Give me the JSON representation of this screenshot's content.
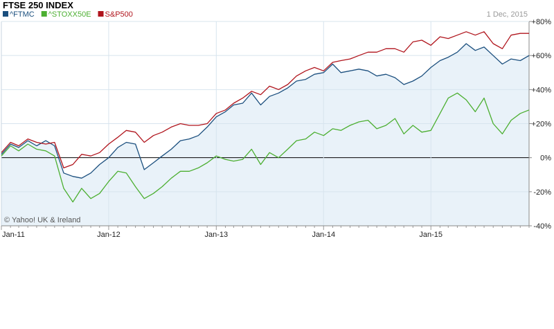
{
  "chart_data": {
    "type": "line",
    "title": "FTSE 250 INDEX",
    "date_label": "1 Dec, 2015",
    "credit": "© Yahoo! UK & Ireland",
    "x_range": [
      "2011-01-01",
      "2015-12-01"
    ],
    "ylim": [
      -40,
      80
    ],
    "y_ticks": [
      {
        "value": 80,
        "label": "+80%"
      },
      {
        "value": 60,
        "label": "+60%"
      },
      {
        "value": 40,
        "label": "+40%"
      },
      {
        "value": 20,
        "label": "+20%"
      },
      {
        "value": 0,
        "label": "0%"
      },
      {
        "value": -20,
        "label": "-20%"
      },
      {
        "value": -40,
        "label": "-40%"
      }
    ],
    "x_ticks": [
      {
        "date": "2011-01-01",
        "label": "Jan-11"
      },
      {
        "date": "2012-01-01",
        "label": "Jan-12"
      },
      {
        "date": "2013-01-01",
        "label": "Jan-13"
      },
      {
        "date": "2014-01-01",
        "label": "Jan-14"
      },
      {
        "date": "2015-01-01",
        "label": "Jan-15"
      }
    ],
    "grid": true,
    "legend_position": "top-left",
    "series": [
      {
        "name": "^FTMC",
        "color": "#1b4f7e",
        "fill": "#e9f2f9",
        "points": [
          [
            "2011-01-01",
            2
          ],
          [
            "2011-02-01",
            8
          ],
          [
            "2011-03-01",
            6
          ],
          [
            "2011-04-01",
            10
          ],
          [
            "2011-05-01",
            7
          ],
          [
            "2011-06-01",
            10
          ],
          [
            "2011-07-01",
            7
          ],
          [
            "2011-08-01",
            -9
          ],
          [
            "2011-09-01",
            -11
          ],
          [
            "2011-10-01",
            -12
          ],
          [
            "2011-11-01",
            -9
          ],
          [
            "2011-12-01",
            -4
          ],
          [
            "2012-01-01",
            0
          ],
          [
            "2012-02-01",
            6
          ],
          [
            "2012-03-01",
            9
          ],
          [
            "2012-04-01",
            8
          ],
          [
            "2012-05-01",
            -7
          ],
          [
            "2012-06-01",
            -3
          ],
          [
            "2012-07-01",
            1
          ],
          [
            "2012-08-01",
            5
          ],
          [
            "2012-09-01",
            10
          ],
          [
            "2012-10-01",
            11
          ],
          [
            "2012-11-01",
            13
          ],
          [
            "2012-12-01",
            18
          ],
          [
            "2013-01-01",
            24
          ],
          [
            "2013-02-01",
            27
          ],
          [
            "2013-03-01",
            31
          ],
          [
            "2013-04-01",
            32
          ],
          [
            "2013-05-01",
            38
          ],
          [
            "2013-06-01",
            31
          ],
          [
            "2013-07-01",
            36
          ],
          [
            "2013-08-01",
            38
          ],
          [
            "2013-09-01",
            41
          ],
          [
            "2013-10-01",
            45
          ],
          [
            "2013-11-01",
            46
          ],
          [
            "2013-12-01",
            49
          ],
          [
            "2014-01-01",
            50
          ],
          [
            "2014-02-01",
            55
          ],
          [
            "2014-03-01",
            50
          ],
          [
            "2014-04-01",
            51
          ],
          [
            "2014-05-01",
            52
          ],
          [
            "2014-06-01",
            51
          ],
          [
            "2014-07-01",
            48
          ],
          [
            "2014-08-01",
            49
          ],
          [
            "2014-09-01",
            47
          ],
          [
            "2014-10-01",
            43
          ],
          [
            "2014-11-01",
            45
          ],
          [
            "2014-12-01",
            48
          ],
          [
            "2015-01-01",
            53
          ],
          [
            "2015-02-01",
            57
          ],
          [
            "2015-03-01",
            59
          ],
          [
            "2015-04-01",
            62
          ],
          [
            "2015-05-01",
            67
          ],
          [
            "2015-06-01",
            63
          ],
          [
            "2015-07-01",
            65
          ],
          [
            "2015-08-01",
            60
          ],
          [
            "2015-09-01",
            55
          ],
          [
            "2015-10-01",
            58
          ],
          [
            "2015-11-01",
            57
          ],
          [
            "2015-12-01",
            60
          ]
        ]
      },
      {
        "name": "^STOXX50E",
        "color": "#4caf31",
        "fill": "",
        "points": [
          [
            "2011-01-01",
            1
          ],
          [
            "2011-02-01",
            7
          ],
          [
            "2011-03-01",
            4
          ],
          [
            "2011-04-01",
            8
          ],
          [
            "2011-05-01",
            5
          ],
          [
            "2011-06-01",
            4
          ],
          [
            "2011-07-01",
            1
          ],
          [
            "2011-08-01",
            -18
          ],
          [
            "2011-09-01",
            -26
          ],
          [
            "2011-10-01",
            -18
          ],
          [
            "2011-11-01",
            -24
          ],
          [
            "2011-12-01",
            -21
          ],
          [
            "2012-01-01",
            -14
          ],
          [
            "2012-02-01",
            -8
          ],
          [
            "2012-03-01",
            -9
          ],
          [
            "2012-04-01",
            -17
          ],
          [
            "2012-05-01",
            -24
          ],
          [
            "2012-06-01",
            -21
          ],
          [
            "2012-07-01",
            -17
          ],
          [
            "2012-08-01",
            -12
          ],
          [
            "2012-09-01",
            -8
          ],
          [
            "2012-10-01",
            -8
          ],
          [
            "2012-11-01",
            -6
          ],
          [
            "2012-12-01",
            -3
          ],
          [
            "2013-01-01",
            1
          ],
          [
            "2013-02-01",
            -1
          ],
          [
            "2013-03-01",
            -2
          ],
          [
            "2013-04-01",
            -1
          ],
          [
            "2013-05-01",
            5
          ],
          [
            "2013-06-01",
            -4
          ],
          [
            "2013-07-01",
            3
          ],
          [
            "2013-08-01",
            0
          ],
          [
            "2013-09-01",
            5
          ],
          [
            "2013-10-01",
            10
          ],
          [
            "2013-11-01",
            11
          ],
          [
            "2013-12-01",
            15
          ],
          [
            "2014-01-01",
            13
          ],
          [
            "2014-02-01",
            17
          ],
          [
            "2014-03-01",
            16
          ],
          [
            "2014-04-01",
            19
          ],
          [
            "2014-05-01",
            21
          ],
          [
            "2014-06-01",
            22
          ],
          [
            "2014-07-01",
            17
          ],
          [
            "2014-08-01",
            19
          ],
          [
            "2014-09-01",
            23
          ],
          [
            "2014-10-01",
            14
          ],
          [
            "2014-11-01",
            19
          ],
          [
            "2014-12-01",
            15
          ],
          [
            "2015-01-01",
            16
          ],
          [
            "2015-02-01",
            26
          ],
          [
            "2015-03-01",
            35
          ],
          [
            "2015-04-01",
            38
          ],
          [
            "2015-05-01",
            34
          ],
          [
            "2015-06-01",
            27
          ],
          [
            "2015-07-01",
            35
          ],
          [
            "2015-08-01",
            20
          ],
          [
            "2015-09-01",
            14
          ],
          [
            "2015-10-01",
            22
          ],
          [
            "2015-11-01",
            26
          ],
          [
            "2015-12-01",
            28
          ]
        ]
      },
      {
        "name": "S&P500",
        "color": "#b0141c",
        "fill": "",
        "points": [
          [
            "2011-01-01",
            3
          ],
          [
            "2011-02-01",
            9
          ],
          [
            "2011-03-01",
            7
          ],
          [
            "2011-04-01",
            11
          ],
          [
            "2011-05-01",
            9
          ],
          [
            "2011-06-01",
            8
          ],
          [
            "2011-07-01",
            9
          ],
          [
            "2011-08-01",
            -6
          ],
          [
            "2011-09-01",
            -4
          ],
          [
            "2011-10-01",
            2
          ],
          [
            "2011-11-01",
            1
          ],
          [
            "2011-12-01",
            3
          ],
          [
            "2012-01-01",
            8
          ],
          [
            "2012-02-01",
            12
          ],
          [
            "2012-03-01",
            16
          ],
          [
            "2012-04-01",
            15
          ],
          [
            "2012-05-01",
            9
          ],
          [
            "2012-06-01",
            13
          ],
          [
            "2012-07-01",
            15
          ],
          [
            "2012-08-01",
            18
          ],
          [
            "2012-09-01",
            20
          ],
          [
            "2012-10-01",
            19
          ],
          [
            "2012-11-01",
            19
          ],
          [
            "2012-12-01",
            20
          ],
          [
            "2013-01-01",
            26
          ],
          [
            "2013-02-01",
            28
          ],
          [
            "2013-03-01",
            32
          ],
          [
            "2013-04-01",
            35
          ],
          [
            "2013-05-01",
            39
          ],
          [
            "2013-06-01",
            37
          ],
          [
            "2013-07-01",
            42
          ],
          [
            "2013-08-01",
            40
          ],
          [
            "2013-09-01",
            43
          ],
          [
            "2013-10-01",
            48
          ],
          [
            "2013-11-01",
            51
          ],
          [
            "2013-12-01",
            53
          ],
          [
            "2014-01-01",
            51
          ],
          [
            "2014-02-01",
            56
          ],
          [
            "2014-03-01",
            57
          ],
          [
            "2014-04-01",
            58
          ],
          [
            "2014-05-01",
            60
          ],
          [
            "2014-06-01",
            62
          ],
          [
            "2014-07-01",
            62
          ],
          [
            "2014-08-01",
            64
          ],
          [
            "2014-09-01",
            64
          ],
          [
            "2014-10-01",
            62
          ],
          [
            "2014-11-01",
            68
          ],
          [
            "2014-12-01",
            69
          ],
          [
            "2015-01-01",
            66
          ],
          [
            "2015-02-01",
            71
          ],
          [
            "2015-03-01",
            70
          ],
          [
            "2015-04-01",
            72
          ],
          [
            "2015-05-01",
            74
          ],
          [
            "2015-06-01",
            72
          ],
          [
            "2015-07-01",
            74
          ],
          [
            "2015-08-01",
            67
          ],
          [
            "2015-09-01",
            64
          ],
          [
            "2015-10-01",
            72
          ],
          [
            "2015-11-01",
            73
          ],
          [
            "2015-12-01",
            73
          ]
        ]
      }
    ]
  }
}
